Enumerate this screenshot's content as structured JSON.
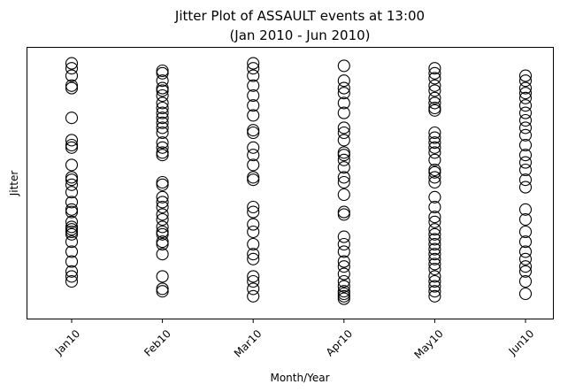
{
  "chart_data": {
    "type": "scatter",
    "title": "Jitter Plot of ASSAULT events at 13:00",
    "subtitle": "(Jan 2010 - Jun 2010)",
    "xlabel": "Month/Year",
    "ylabel": "Jitter",
    "ylim": [
      0,
      1
    ],
    "grid": false,
    "marker": "open-circle",
    "colors": {
      "marker_stroke": "#000000",
      "background": "#ffffff"
    },
    "categories": [
      "Jan10",
      "Feb10",
      "Mar10",
      "Apr10",
      "May10",
      "Jun10"
    ],
    "series": [
      {
        "values": [
          [
            0,
            0.98
          ],
          [
            0,
            0.96
          ],
          [
            0,
            0.93
          ],
          [
            0,
            0.89
          ],
          [
            0,
            0.88
          ],
          [
            0,
            0.76
          ],
          [
            0,
            0.67
          ],
          [
            0,
            0.65
          ],
          [
            0,
            0.64
          ],
          [
            0,
            0.57
          ],
          [
            0,
            0.52
          ],
          [
            0,
            0.51
          ],
          [
            0,
            0.49
          ],
          [
            0,
            0.46
          ],
          [
            0,
            0.42
          ],
          [
            0,
            0.39
          ],
          [
            0,
            0.38
          ],
          [
            0,
            0.34
          ],
          [
            0,
            0.32
          ],
          [
            0,
            0.31
          ],
          [
            0,
            0.3
          ],
          [
            0,
            0.29
          ],
          [
            0,
            0.26
          ],
          [
            0,
            0.22
          ],
          [
            0,
            0.18
          ],
          [
            0,
            0.14
          ],
          [
            0,
            0.12
          ],
          [
            0,
            0.1
          ]
        ]
      },
      {
        "values": [
          [
            1,
            0.95
          ],
          [
            1,
            0.94
          ],
          [
            1,
            0.91
          ],
          [
            1,
            0.88
          ],
          [
            1,
            0.87
          ],
          [
            1,
            0.85
          ],
          [
            1,
            0.82
          ],
          [
            1,
            0.8
          ],
          [
            1,
            0.78
          ],
          [
            1,
            0.76
          ],
          [
            1,
            0.74
          ],
          [
            1,
            0.72
          ],
          [
            1,
            0.7
          ],
          [
            1,
            0.66
          ],
          [
            1,
            0.64
          ],
          [
            1,
            0.62
          ],
          [
            1,
            0.61
          ],
          [
            1,
            0.5
          ],
          [
            1,
            0.49
          ],
          [
            1,
            0.44
          ],
          [
            1,
            0.42
          ],
          [
            1,
            0.4
          ],
          [
            1,
            0.37
          ],
          [
            1,
            0.35
          ],
          [
            1,
            0.32
          ],
          [
            1,
            0.3
          ],
          [
            1,
            0.29
          ],
          [
            1,
            0.26
          ],
          [
            1,
            0.25
          ],
          [
            1,
            0.21
          ],
          [
            1,
            0.12
          ],
          [
            1,
            0.07
          ],
          [
            1,
            0.06
          ]
        ]
      },
      {
        "values": [
          [
            2,
            0.98
          ],
          [
            2,
            0.96
          ],
          [
            2,
            0.93
          ],
          [
            2,
            0.89
          ],
          [
            2,
            0.85
          ],
          [
            2,
            0.81
          ],
          [
            2,
            0.77
          ],
          [
            2,
            0.71
          ],
          [
            2,
            0.7
          ],
          [
            2,
            0.64
          ],
          [
            2,
            0.61
          ],
          [
            2,
            0.57
          ],
          [
            2,
            0.52
          ],
          [
            2,
            0.51
          ],
          [
            2,
            0.4
          ],
          [
            2,
            0.38
          ],
          [
            2,
            0.33
          ],
          [
            2,
            0.3
          ],
          [
            2,
            0.25
          ],
          [
            2,
            0.21
          ],
          [
            2,
            0.19
          ],
          [
            2,
            0.12
          ],
          [
            2,
            0.1
          ],
          [
            2,
            0.07
          ],
          [
            2,
            0.04
          ]
        ]
      },
      {
        "values": [
          [
            3,
            0.97
          ],
          [
            3,
            0.91
          ],
          [
            3,
            0.88
          ],
          [
            3,
            0.86
          ],
          [
            3,
            0.82
          ],
          [
            3,
            0.78
          ],
          [
            3,
            0.72
          ],
          [
            3,
            0.7
          ],
          [
            3,
            0.67
          ],
          [
            3,
            0.62
          ],
          [
            3,
            0.61
          ],
          [
            3,
            0.59
          ],
          [
            3,
            0.56
          ],
          [
            3,
            0.52
          ],
          [
            3,
            0.5
          ],
          [
            3,
            0.45
          ],
          [
            3,
            0.38
          ],
          [
            3,
            0.37
          ],
          [
            3,
            0.28
          ],
          [
            3,
            0.25
          ],
          [
            3,
            0.22
          ],
          [
            3,
            0.18
          ],
          [
            3,
            0.16
          ],
          [
            3,
            0.13
          ],
          [
            3,
            0.1
          ],
          [
            3,
            0.08
          ],
          [
            3,
            0.06
          ],
          [
            3,
            0.05
          ],
          [
            3,
            0.04
          ],
          [
            3,
            0.03
          ]
        ]
      },
      {
        "values": [
          [
            4,
            0.96
          ],
          [
            4,
            0.94
          ],
          [
            4,
            0.92
          ],
          [
            4,
            0.89
          ],
          [
            4,
            0.87
          ],
          [
            4,
            0.84
          ],
          [
            4,
            0.82
          ],
          [
            4,
            0.8
          ],
          [
            4,
            0.79
          ],
          [
            4,
            0.7
          ],
          [
            4,
            0.68
          ],
          [
            4,
            0.66
          ],
          [
            4,
            0.64
          ],
          [
            4,
            0.62
          ],
          [
            4,
            0.59
          ],
          [
            4,
            0.55
          ],
          [
            4,
            0.54
          ],
          [
            4,
            0.52
          ],
          [
            4,
            0.5
          ],
          [
            4,
            0.44
          ],
          [
            4,
            0.4
          ],
          [
            4,
            0.36
          ],
          [
            4,
            0.34
          ],
          [
            4,
            0.31
          ],
          [
            4,
            0.29
          ],
          [
            4,
            0.27
          ],
          [
            4,
            0.25
          ],
          [
            4,
            0.23
          ],
          [
            4,
            0.21
          ],
          [
            4,
            0.19
          ],
          [
            4,
            0.17
          ],
          [
            4,
            0.15
          ],
          [
            4,
            0.12
          ],
          [
            4,
            0.1
          ],
          [
            4,
            0.08
          ],
          [
            4,
            0.06
          ],
          [
            4,
            0.04
          ]
        ]
      },
      {
        "values": [
          [
            5,
            0.93
          ],
          [
            5,
            0.91
          ],
          [
            5,
            0.88
          ],
          [
            5,
            0.86
          ],
          [
            5,
            0.84
          ],
          [
            5,
            0.81
          ],
          [
            5,
            0.78
          ],
          [
            5,
            0.75
          ],
          [
            5,
            0.72
          ],
          [
            5,
            0.69
          ],
          [
            5,
            0.65
          ],
          [
            5,
            0.61
          ],
          [
            5,
            0.58
          ],
          [
            5,
            0.55
          ],
          [
            5,
            0.51
          ],
          [
            5,
            0.48
          ],
          [
            5,
            0.39
          ],
          [
            5,
            0.35
          ],
          [
            5,
            0.3
          ],
          [
            5,
            0.26
          ],
          [
            5,
            0.22
          ],
          [
            5,
            0.19
          ],
          [
            5,
            0.16
          ],
          [
            5,
            0.14
          ],
          [
            5,
            0.1
          ],
          [
            5,
            0.05
          ]
        ]
      }
    ]
  }
}
